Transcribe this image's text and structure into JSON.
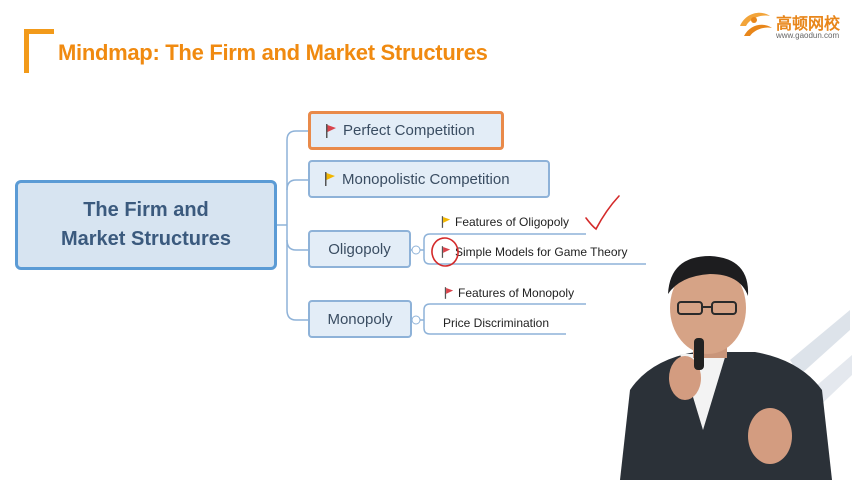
{
  "slide": {
    "title": "Mindmap: The Firm and Market Structures"
  },
  "logo": {
    "brand_cn": "高顿网校",
    "url": "www.gaodun.com",
    "color": "#e8861a"
  },
  "mindmap": {
    "central": {
      "line1": "The Firm and",
      "line2": "Market Structures"
    },
    "branches": [
      {
        "label": "Perfect Competition",
        "flag": "red",
        "selected": true
      },
      {
        "label": "Monopolistic Competition",
        "flag": "yellow"
      },
      {
        "label": "Oligopoly",
        "children": [
          {
            "label": "Features of Oligopoly",
            "flag": "yellow"
          },
          {
            "label": "Simple Models for Game Theory",
            "flag": "red"
          }
        ]
      },
      {
        "label": "Monopoly",
        "children": [
          {
            "label": "Features of Monopoly",
            "flag": "red"
          },
          {
            "label": "Price Discrimination"
          }
        ]
      }
    ]
  },
  "colors": {
    "accent_orange": "#f08a10",
    "node_border": "#5b9bd5",
    "flag_red": "#d9434b",
    "flag_yellow": "#f2b600",
    "annotation_red": "#d42a2a"
  }
}
